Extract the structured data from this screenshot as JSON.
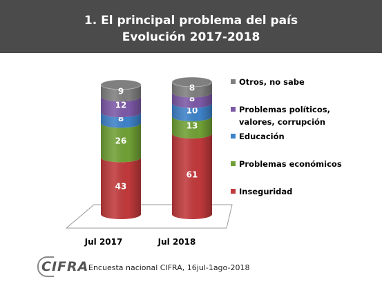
{
  "title": {
    "line1": "1.   El principal problema del país",
    "line2": "Evolución 2017-2018"
  },
  "chart_data": {
    "type": "bar",
    "stacked": true,
    "categories": [
      "Jul 2017",
      "Jul 2018"
    ],
    "series": [
      {
        "name": "Inseguridad",
        "values": [
          43,
          61
        ],
        "color": "#c0393b"
      },
      {
        "name": "Problemas económicos",
        "values": [
          26,
          13
        ],
        "color": "#70a035"
      },
      {
        "name": "Educación",
        "values": [
          8,
          10
        ],
        "color": "#3e82c8"
      },
      {
        "name": "Problemas políticos, valores, corrupción",
        "legend_lines": [
          "Problemas políticos,",
          "valores, corrupción"
        ],
        "values": [
          12,
          8
        ],
        "color": "#7c59a6"
      },
      {
        "name": "Otros, no sabe",
        "values": [
          9,
          8
        ],
        "color": "#7f7f7f"
      }
    ],
    "legend_order": [
      "Otros, no sabe",
      "Problemas políticos, valores, corrupción",
      "Educación",
      "Problemas económicos",
      "Inseguridad"
    ],
    "legend_position": "right",
    "ylim": [
      0,
      100
    ]
  },
  "footer": {
    "logo": "CIFRA",
    "source": "Encuesta nacional CIFRA,  16jul-1ago-2018"
  }
}
